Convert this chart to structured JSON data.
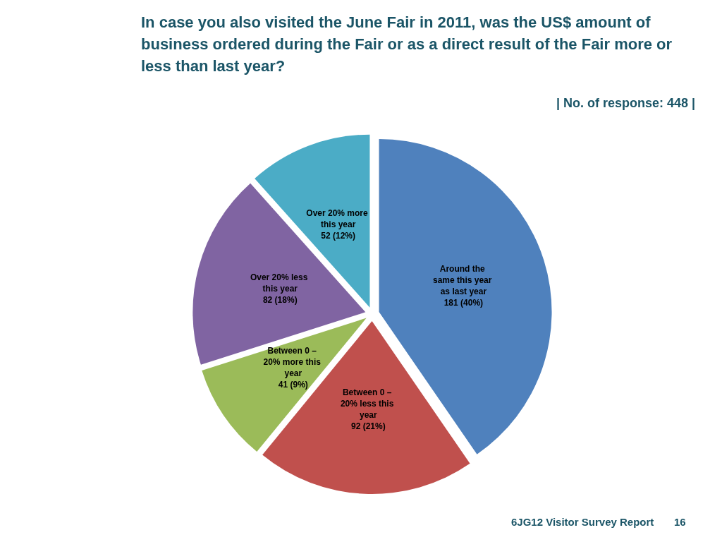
{
  "chart_data": {
    "type": "pie",
    "title": "In case you also visited the June Fair in 2011, was the US$ amount of business ordered during the Fair or as a direct result of the Fair more or less than last year?",
    "annotations": [
      "| No. of response: 448 |",
      "6JG12 Visitor Survey Report",
      "16"
    ],
    "categories": [
      "Around the same this year as last year",
      "Between 0 – 20% less this year",
      "Between 0 – 20% more this year",
      "Over 20% less this year",
      "Over 20% more this year"
    ],
    "values": [
      181,
      92,
      41,
      82,
      52
    ],
    "colors": [
      "#4f81bd",
      "#c0504d",
      "#9bbb59",
      "#8064a2",
      "#4bacc6"
    ],
    "value_labels": [
      "181 (40%)",
      "92 (21%)",
      "41 (9%)",
      "82 (18%)",
      "52 (12%)"
    ]
  }
}
